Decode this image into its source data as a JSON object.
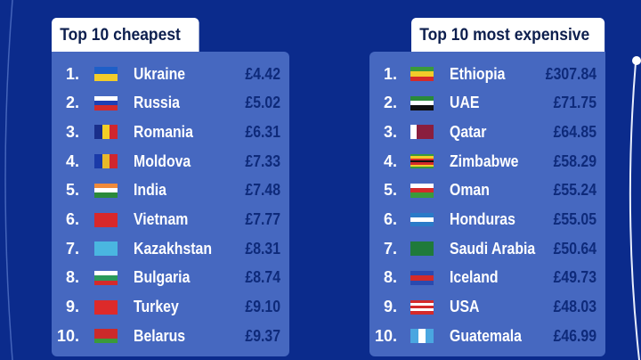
{
  "cheapest": {
    "title": "Top 10 cheapest",
    "rows": [
      {
        "rank": "1.",
        "country": "Ukraine",
        "price": "£4.42",
        "flag": {
          "dir": "h",
          "colors": [
            "#1f5fc8",
            "#f2cc2a"
          ]
        }
      },
      {
        "rank": "2.",
        "country": "Russia",
        "price": "£5.02",
        "flag": {
          "dir": "h",
          "colors": [
            "#ffffff",
            "#1d3fb5",
            "#d42a2a"
          ]
        }
      },
      {
        "rank": "3.",
        "country": "Romania",
        "price": "£6.31",
        "flag": {
          "dir": "v",
          "colors": [
            "#1a2f8a",
            "#f3cf25",
            "#d0262d"
          ]
        }
      },
      {
        "rank": "4.",
        "country": "Moldova",
        "price": "£7.33",
        "flag": {
          "dir": "v",
          "colors": [
            "#1a3aa8",
            "#e8b92a",
            "#d0262d"
          ]
        }
      },
      {
        "rank": "5.",
        "country": "India",
        "price": "£7.48",
        "flag": {
          "dir": "h",
          "colors": [
            "#f08a3a",
            "#ffffff",
            "#2a8a3a"
          ]
        }
      },
      {
        "rank": "6.",
        "country": "Vietnam",
        "price": "£7.77",
        "flag": {
          "dir": "h",
          "colors": [
            "#d8282a"
          ]
        }
      },
      {
        "rank": "7.",
        "country": "Kazakhstan",
        "price": "£8.31",
        "flag": {
          "dir": "h",
          "colors": [
            "#4ab6e0"
          ]
        }
      },
      {
        "rank": "8.",
        "country": "Bulgaria",
        "price": "£8.74",
        "flag": {
          "dir": "h",
          "colors": [
            "#ffffff",
            "#2a9a5a",
            "#d42a2a"
          ]
        }
      },
      {
        "rank": "9.",
        "country": "Turkey",
        "price": "£9.10",
        "flag": {
          "dir": "h",
          "colors": [
            "#dd2a2a"
          ]
        }
      },
      {
        "rank": "10.",
        "country": "Belarus",
        "price": "£9.37",
        "flag": {
          "dir": "h",
          "colors": [
            "#cc2a2a",
            "#cc2a2a",
            "#3a9a3a"
          ]
        }
      }
    ]
  },
  "expensive": {
    "title": "Top 10 most expensive",
    "rows": [
      {
        "rank": "1.",
        "country": "Ethiopia",
        "price": "£307.84",
        "flag": {
          "dir": "h",
          "colors": [
            "#3a9a3a",
            "#f2cc2a",
            "#d42a2a"
          ]
        }
      },
      {
        "rank": "2.",
        "country": "UAE",
        "price": "£71.75",
        "flag": {
          "dir": "h",
          "colors": [
            "#2a8a3a",
            "#ffffff",
            "#111111"
          ]
        }
      },
      {
        "rank": "3.",
        "country": "Qatar",
        "price": "£64.85",
        "flag": {
          "dir": "v",
          "colors": [
            "#ffffff",
            "#8a1e3e",
            "#8a1e3e",
            "#8a1e3e"
          ]
        }
      },
      {
        "rank": "4.",
        "country": "Zimbabwe",
        "price": "£58.29",
        "flag": {
          "dir": "h",
          "colors": [
            "#3a9a3a",
            "#f2cc2a",
            "#d42a2a",
            "#111111",
            "#d42a2a",
            "#f2cc2a",
            "#3a9a3a"
          ]
        }
      },
      {
        "rank": "5.",
        "country": "Oman",
        "price": "£55.24",
        "flag": {
          "dir": "h",
          "colors": [
            "#ffffff",
            "#d42a2a",
            "#3a9a3a"
          ]
        }
      },
      {
        "rank": "6.",
        "country": "Honduras",
        "price": "£55.05",
        "flag": {
          "dir": "h",
          "colors": [
            "#2a7ac8",
            "#ffffff",
            "#2a7ac8"
          ]
        }
      },
      {
        "rank": "7.",
        "country": "Saudi Arabia",
        "price": "£50.64",
        "flag": {
          "dir": "h",
          "colors": [
            "#1f7a3a"
          ]
        }
      },
      {
        "rank": "8.",
        "country": "Iceland",
        "price": "£49.73",
        "flag": {
          "dir": "h",
          "colors": [
            "#2a4ab0",
            "#d42a2a",
            "#2a4ab0"
          ]
        }
      },
      {
        "rank": "9.",
        "country": "USA",
        "price": "£48.03",
        "flag": {
          "dir": "h",
          "colors": [
            "#d42a2a",
            "#ffffff",
            "#d42a2a",
            "#ffffff",
            "#d42a2a"
          ]
        }
      },
      {
        "rank": "10.",
        "country": "Guatemala",
        "price": "£46.99",
        "flag": {
          "dir": "v",
          "colors": [
            "#4aa6e0",
            "#ffffff",
            "#4aa6e0"
          ]
        }
      }
    ]
  }
}
